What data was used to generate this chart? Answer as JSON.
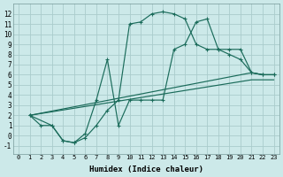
{
  "background_color": "#cce9e9",
  "grid_color": "#aacccc",
  "line_color": "#1a6b5a",
  "xlabel": "Humidex (Indice chaleur)",
  "xlim": [
    -0.5,
    23.5
  ],
  "ylim": [
    -1.8,
    13.0
  ],
  "xticks": [
    0,
    1,
    2,
    3,
    4,
    5,
    6,
    7,
    8,
    9,
    10,
    11,
    12,
    13,
    14,
    15,
    16,
    17,
    18,
    19,
    20,
    21,
    22,
    23
  ],
  "yticks": [
    -1,
    0,
    1,
    2,
    3,
    4,
    5,
    6,
    7,
    8,
    9,
    10,
    11,
    12
  ],
  "curve1_x": [
    1,
    2,
    3,
    4,
    5,
    6,
    7,
    8,
    9,
    10,
    11,
    12,
    13,
    14,
    15,
    16,
    17,
    18,
    19,
    20,
    21,
    22,
    23
  ],
  "curve1_y": [
    2,
    1,
    1,
    -0.5,
    -0.7,
    -0.2,
    1.0,
    2.5,
    3.5,
    11.0,
    11.2,
    12.0,
    12.2,
    12.0,
    11.5,
    9.0,
    8.5,
    8.5,
    8.5,
    8.5,
    6.2,
    6.0,
    6.0
  ],
  "curve2_x": [
    1,
    3,
    4,
    5,
    6,
    7,
    8,
    9,
    10,
    11,
    12,
    13,
    14,
    15,
    16,
    17,
    18,
    19,
    20,
    21,
    22,
    23
  ],
  "curve2_y": [
    2,
    1,
    -0.5,
    -0.7,
    0.2,
    3.5,
    7.5,
    1.0,
    3.5,
    3.5,
    3.5,
    3.5,
    8.5,
    9.0,
    11.2,
    11.5,
    8.5,
    8.0,
    7.5,
    6.2,
    6.0,
    6.0
  ],
  "line1_x": [
    1,
    21,
    22,
    23
  ],
  "line1_y": [
    2.0,
    6.2,
    6.0,
    6.0
  ],
  "line2_x": [
    1,
    21,
    22,
    23
  ],
  "line2_y": [
    2.0,
    5.5,
    5.5,
    5.5
  ]
}
